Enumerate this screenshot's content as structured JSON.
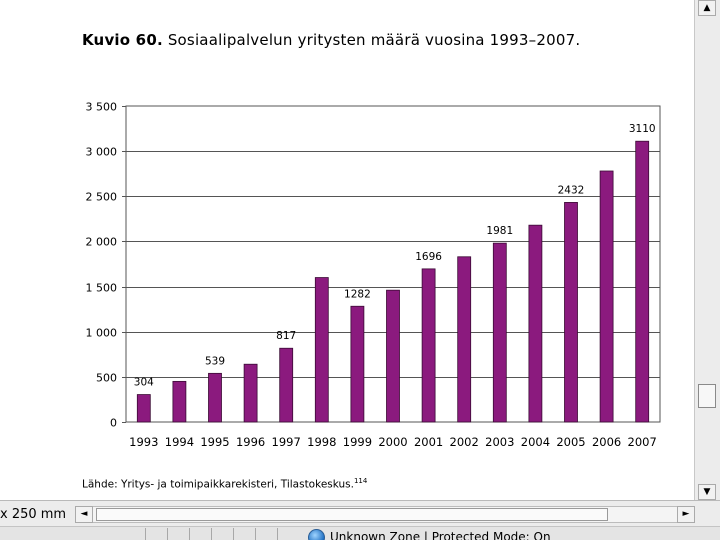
{
  "figure": {
    "title_number": "Kuvio 60.",
    "title_text": "Sosiaalipalvelun yritysten määrä vuosina 1993–2007.",
    "source_text": "Lähde: Yritys- ja toimipaikkarekisteri, Tilastokeskus.",
    "source_ref": "114"
  },
  "chart_data": {
    "type": "bar",
    "title": "Sosiaalipalvelun yritysten määrä vuosina 1993–2007.",
    "xlabel": "",
    "ylabel": "",
    "ylim": [
      0,
      3500
    ],
    "ytick_values": [
      0,
      500,
      1000,
      1500,
      2000,
      2500,
      3000,
      3500
    ],
    "ytick_labels": [
      "0",
      "500",
      "1 000",
      "1 500",
      "2 000",
      "2 500",
      "3 000",
      "3 500"
    ],
    "grid": true,
    "legend": "none",
    "categories": [
      "1993",
      "1994",
      "1995",
      "1996",
      "1997",
      "1998",
      "1999",
      "2000",
      "2001",
      "2002",
      "2003",
      "2004",
      "2005",
      "2006",
      "2007"
    ],
    "values": [
      304,
      450,
      539,
      640,
      817,
      1600,
      1282,
      1460,
      1696,
      1830,
      1981,
      2180,
      2432,
      2780,
      3110
    ],
    "data_labels": [
      "304",
      null,
      "539",
      null,
      "817",
      null,
      "1282",
      null,
      "1696",
      null,
      "1981",
      null,
      "2432",
      null,
      "3110"
    ],
    "bar_color": "#8b1a7e"
  },
  "viewer": {
    "zoom_label": "x 250 mm",
    "status_text": "Unknown Zone | Protected Mode: On",
    "vscroll_up": "▲",
    "vscroll_down": "▼",
    "hscroll_left": "◄",
    "hscroll_right": "►"
  },
  "icons": {
    "zone": "globe-icon"
  }
}
